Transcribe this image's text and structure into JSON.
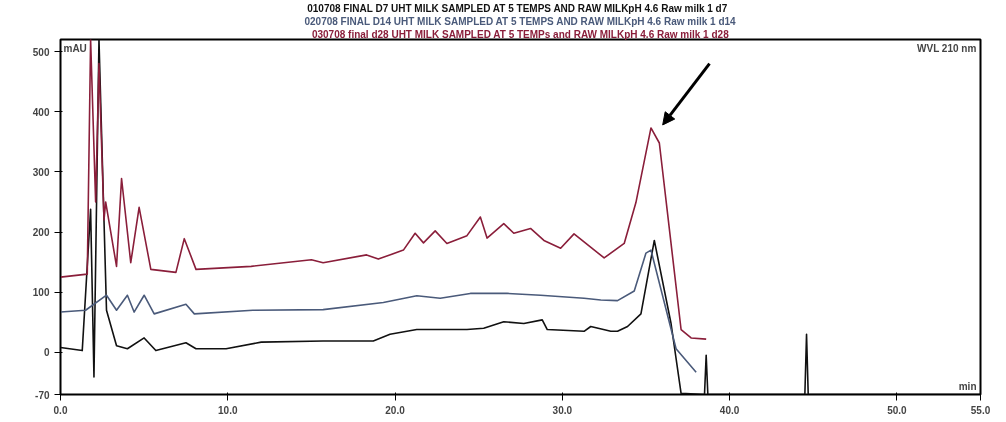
{
  "chart_data": {
    "type": "line",
    "xlabel": "min",
    "ylabel": "mAU",
    "legend": "top",
    "grid": false,
    "marker": "none",
    "line_style": "solid",
    "annotations": [
      "WVL 210 nm"
    ],
    "xlim": [
      0,
      55
    ],
    "ylim": [
      -70,
      520
    ],
    "xticks": [
      {
        "value": 0,
        "label": "0.0"
      },
      {
        "value": 10,
        "label": "10.0"
      },
      {
        "value": 20,
        "label": "20.0"
      },
      {
        "value": 30,
        "label": "30.0"
      },
      {
        "value": 40,
        "label": "40.0"
      },
      {
        "value": 50,
        "label": "50.0"
      },
      {
        "value": 55,
        "label": "55.0"
      }
    ],
    "yticks": [
      -70,
      0,
      100,
      200,
      300,
      400,
      500
    ],
    "series": [
      {
        "name": "010708 FINAL   D7 UHT MILK SAMPLED AT 5 TEMPS AND RAW MILKpH 4.6 Raw milk 1 d7",
        "color": "#111111",
        "x": [
          0,
          1.3,
          1.8,
          2.0,
          2.3,
          2.75,
          3.35,
          4.0,
          5.0,
          5.7,
          7.5,
          8.1,
          9.9,
          12.0,
          15.7,
          18.7,
          19.7,
          21.3,
          22.3,
          23.3,
          24.3,
          25.3,
          26.5,
          27.7,
          28.8,
          29.1,
          31.3,
          31.7,
          32.9,
          33.3,
          33.9,
          34.7,
          35.5,
          36.5,
          37.1,
          38.5,
          38.6,
          38.7,
          44.5,
          44.6,
          44.7,
          55
        ],
        "values": [
          8,
          3,
          238,
          -41,
          520,
          70,
          11,
          6,
          24,
          3,
          16,
          6,
          6,
          17,
          19,
          19,
          30,
          38,
          38,
          38,
          38,
          40,
          51,
          48,
          54,
          38,
          35,
          43,
          35,
          35,
          43,
          64,
          186,
          48,
          -68,
          -70,
          -5,
          -70,
          -70,
          30,
          -70,
          -70
        ]
      },
      {
        "name": "020708 FINAL D14 UHT MILK SAMPLED AT 5 TEMPS AND RAW MILKpH 4.6 Raw milk 1 d14",
        "color": "#4a5a7a",
        "x": [
          0,
          1.5,
          2.75,
          3.35,
          4.0,
          4.4,
          5.0,
          5.6,
          7.5,
          8.0,
          11.5,
          15.7,
          19.3,
          21.3,
          22.7,
          24.5,
          26.7,
          28.7,
          31.3,
          32.3,
          33.3,
          34.3,
          35.0,
          35.3,
          36.8,
          38.0
        ],
        "values": [
          67,
          70,
          95,
          70,
          95,
          67,
          95,
          64,
          80,
          64,
          70,
          71,
          83,
          94,
          90,
          98,
          98,
          95,
          90,
          87,
          86,
          102,
          165,
          170,
          6,
          -33
        ]
      },
      {
        "name": "030708 final d28 UHT MILK SAMPLED AT 5 TEMPs and RAW MILKpH 4.6 Raw milk 1 d28",
        "color": "#8a1e3a",
        "x": [
          0,
          1.6,
          1.8,
          2.1,
          2.3,
          2.6,
          2.7,
          3.35,
          3.65,
          4.2,
          4.7,
          5.4,
          6.9,
          7.4,
          8.1,
          11.4,
          15.0,
          15.7,
          18.3,
          19.0,
          20.5,
          21.2,
          21.7,
          22.4,
          23.1,
          24.3,
          25.1,
          25.5,
          26.5,
          27.1,
          28.1,
          28.9,
          29.9,
          30.7,
          32.5,
          33.7,
          34.4,
          35.3,
          35.8,
          37.1,
          37.7,
          38.6
        ],
        "values": [
          125,
          130,
          520,
          250,
          480,
          220,
          250,
          143,
          289,
          149,
          241,
          138,
          133,
          189,
          138,
          143,
          154,
          149,
          162,
          155,
          170,
          198,
          182,
          202,
          181,
          194,
          225,
          190,
          214,
          198,
          206,
          186,
          173,
          197,
          157,
          181,
          249,
          373,
          348,
          38,
          24,
          22
        ]
      }
    ]
  }
}
